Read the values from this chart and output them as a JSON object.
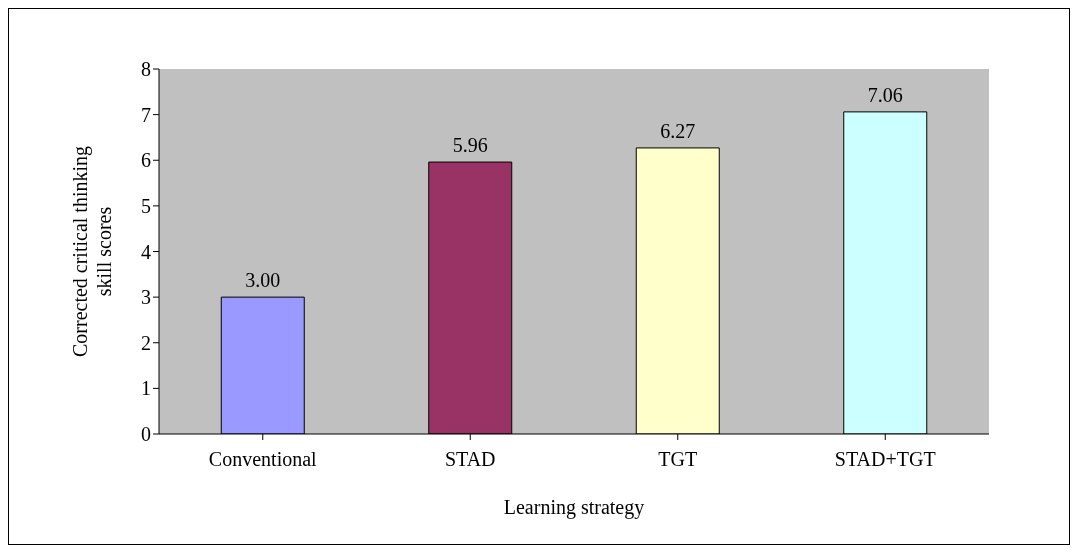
{
  "chart_data": {
    "type": "bar",
    "xlabel": "Learning strategy",
    "ylabel": "Corrected critical thinking skill scores",
    "categories": [
      "Conventional",
      "STAD",
      "TGT",
      "STAD+TGT"
    ],
    "values": [
      3.0,
      5.96,
      6.27,
      7.06
    ],
    "value_labels": [
      "3.00",
      "5.96",
      "6.27",
      "7.06"
    ],
    "colors": [
      "#9999ff",
      "#993366",
      "#ffffcc",
      "#ccffff"
    ],
    "ylim": [
      0,
      8
    ],
    "yticks": [
      0,
      1,
      2,
      3,
      4,
      5,
      6,
      7,
      8
    ],
    "grid": false
  }
}
